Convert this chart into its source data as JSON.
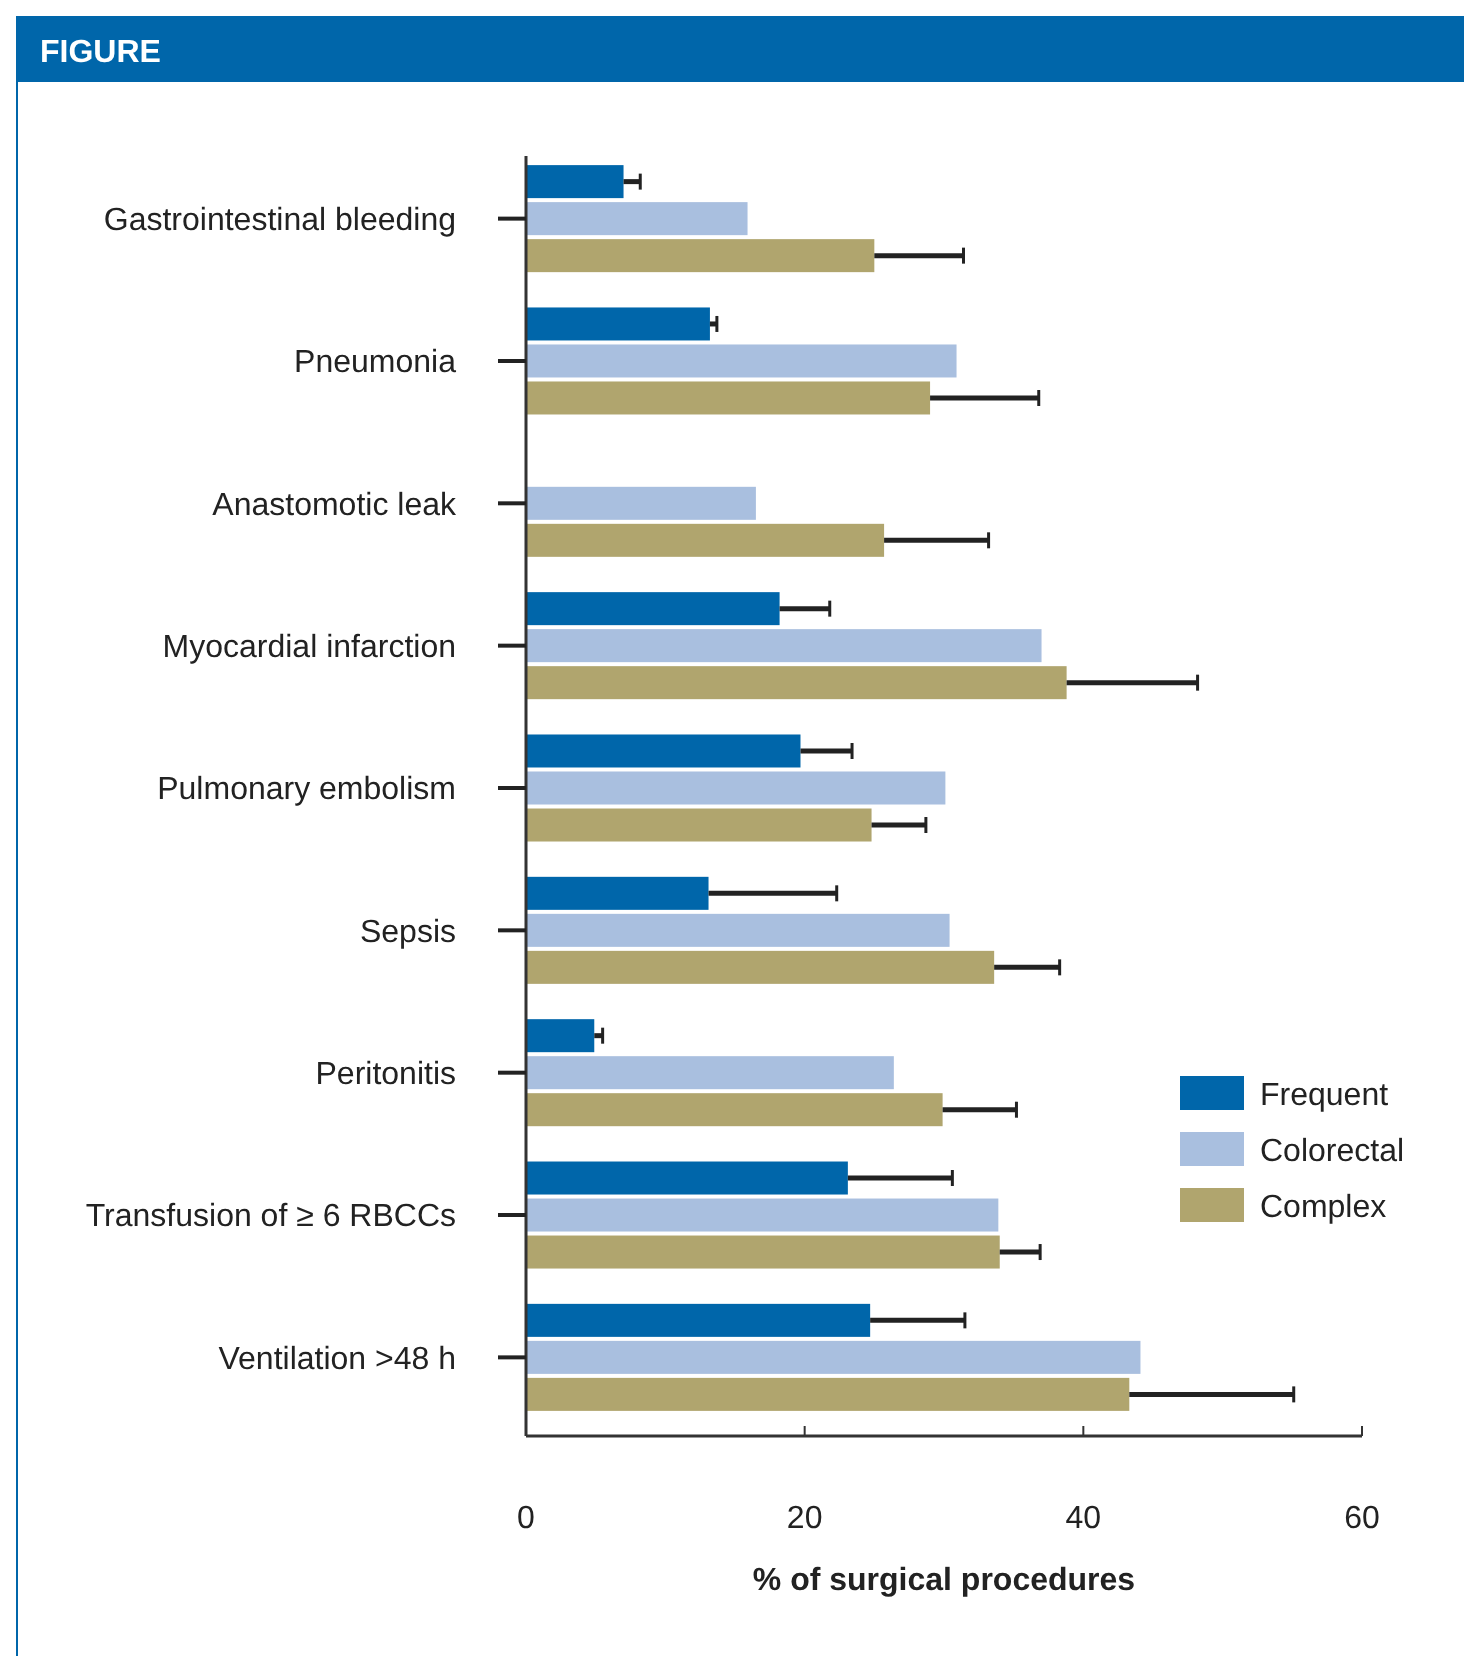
{
  "chart_data": {
    "type": "bar",
    "orientation": "horizontal",
    "title": "FIGURE",
    "xlabel": "% of surgical procedures",
    "categories": [
      "Gastrointestinal bleeding",
      "Pneumonia",
      "Anastomotic leak",
      "Myocardial infarction",
      "Pulmonary embolism",
      "Sepsis",
      "Peritonitis",
      "Transfusion of ≥ 6 RBCCs",
      "Ventilation >48 h"
    ],
    "series": [
      {
        "name": "Frequent",
        "color": "#0066aa",
        "values": [
          7.0,
          13.2,
          null,
          18.2,
          19.7,
          13.1,
          4.9,
          23.1,
          24.7
        ],
        "errors": [
          [
            7.0,
            8.2
          ],
          [
            13.2,
            13.7
          ],
          null,
          [
            18.2,
            21.8
          ],
          [
            19.7,
            23.4
          ],
          [
            13.1,
            22.3
          ],
          [
            4.9,
            5.5
          ],
          [
            23.1,
            30.6
          ],
          [
            24.7,
            31.5
          ]
        ]
      },
      {
        "name": "Colorectal",
        "color": "#a9bfdf",
        "values": [
          15.9,
          30.9,
          16.5,
          37.0,
          30.1,
          30.4,
          26.4,
          33.9,
          44.1
        ]
      },
      {
        "name": "Complex",
        "color": "#b0a56e",
        "values": [
          25.0,
          29.0,
          25.7,
          38.8,
          24.8,
          33.6,
          29.9,
          34.0,
          43.3
        ],
        "errors": [
          [
            25.0,
            31.4
          ],
          [
            29.0,
            36.8
          ],
          [
            25.7,
            33.2
          ],
          [
            38.8,
            48.2
          ],
          [
            24.8,
            28.7
          ],
          [
            33.6,
            38.3
          ],
          [
            29.9,
            35.2
          ],
          [
            34.0,
            36.9
          ],
          [
            43.3,
            55.1
          ]
        ]
      }
    ],
    "xlim": [
      0,
      60
    ],
    "xticks": [
      0,
      20,
      40,
      60
    ],
    "legend": "right"
  }
}
